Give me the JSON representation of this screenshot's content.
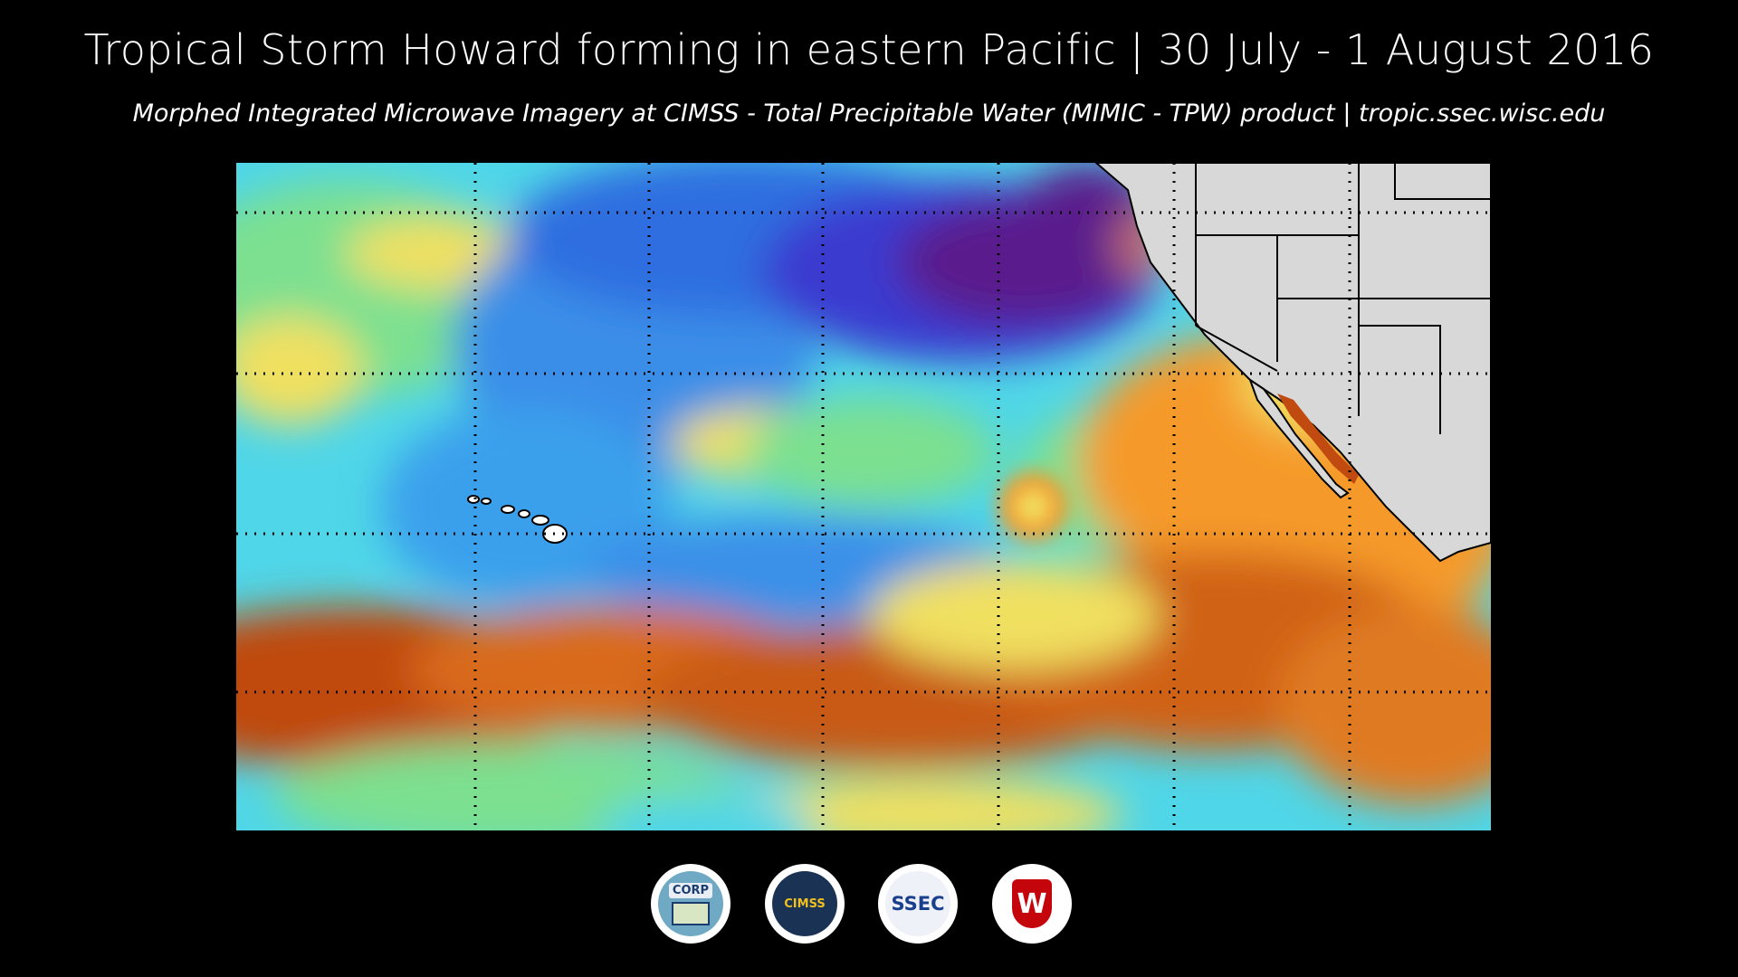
{
  "title": "Tropical Storm Howard forming in eastern Pacific | 30 July - 1 August 2016",
  "subtitle": "Morphed Integrated Microwave Imagery at CIMSS - Total Precipitable Water (MIMIC - TPW) product | tropic.ssec.wisc.edu",
  "map": {
    "product": "MIMIC - TPW",
    "colors": {
      "very_dry": "#5a1a8c",
      "dry": "#3a5ce0",
      "moist_low": "#4fd6e8",
      "moist_mid": "#7be090",
      "moist_high": "#f0e060",
      "wet": "#f59a2a",
      "very_wet": "#b8400a",
      "land": "#d8d8d8"
    },
    "features": {
      "hawaii": "Hawaiian Islands",
      "storm": "Tropical Storm Howard"
    }
  },
  "logos": [
    {
      "name": "CORP",
      "icon": "corp-logo"
    },
    {
      "name": "CIMSS",
      "icon": "cimss-logo"
    },
    {
      "name": "SSEC",
      "icon": "ssec-logo"
    },
    {
      "name": "W",
      "icon": "uw-logo"
    }
  ]
}
